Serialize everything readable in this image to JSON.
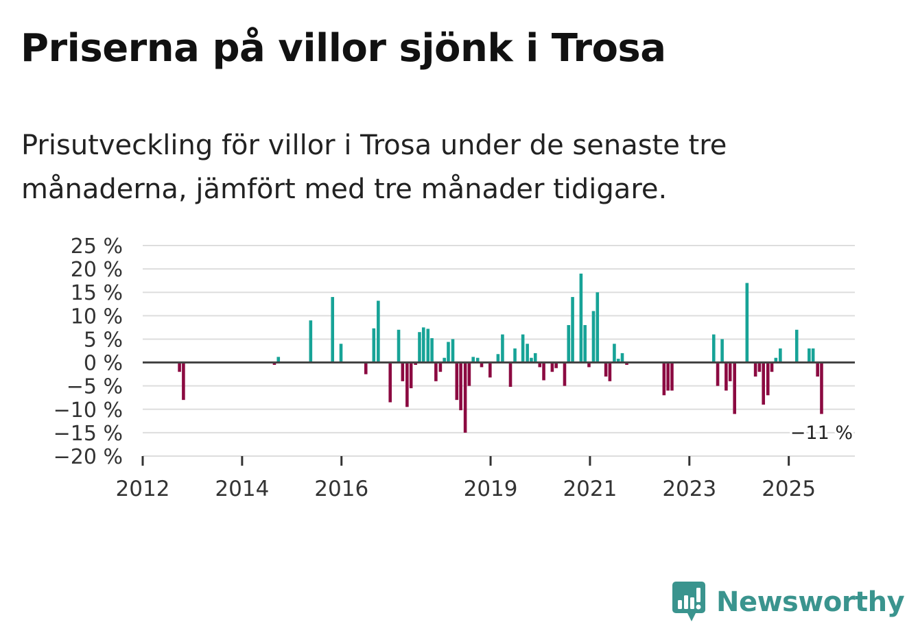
{
  "title": "Priserna på villor sjönk i Trosa",
  "subtitle": "Prisutveckling för villor i Trosa under de senaste tre månaderna, jämfört med tre månader tidigare.",
  "brand": {
    "name": "Newsworthy"
  },
  "colors": {
    "positive": "#17a397",
    "negative": "#8b0a41",
    "grid": "#dddddd",
    "zero": "#444444",
    "brand": "#3a948e"
  },
  "chart_data": {
    "type": "bar",
    "ylim": [
      -20,
      25
    ],
    "yticks": [
      25,
      20,
      15,
      10,
      5,
      0,
      -5,
      -10,
      -15,
      -20
    ],
    "ytick_labels": [
      "25 %",
      "20 %",
      "15 %",
      "10 %",
      "5 %",
      "0 %",
      "−5 %",
      "−10 %",
      "−15 %",
      "−20 %"
    ],
    "xlim": [
      2012.0,
      2026.33
    ],
    "xticks": [
      2012,
      2014,
      2016,
      2019,
      2021,
      2023,
      2025
    ],
    "xtick_labels": [
      "2012",
      "2014",
      "2016",
      "2019",
      "2021",
      "2023",
      "2025"
    ],
    "last_value_label": "−11 %",
    "series": [
      {
        "name": "Prisutveckling",
        "x": [
          2012.74,
          2012.82,
          2014.65,
          2014.73,
          2015.38,
          2015.82,
          2015.99,
          2016.49,
          2016.65,
          2016.74,
          2016.98,
          2017.15,
          2017.23,
          2017.32,
          2017.4,
          2017.49,
          2017.57,
          2017.65,
          2017.74,
          2017.82,
          2017.9,
          2017.99,
          2018.07,
          2018.15,
          2018.24,
          2018.32,
          2018.4,
          2018.49,
          2018.57,
          2018.65,
          2018.74,
          2018.82,
          2018.99,
          2019.15,
          2019.24,
          2019.4,
          2019.49,
          2019.65,
          2019.74,
          2019.82,
          2019.9,
          2019.99,
          2020.07,
          2020.24,
          2020.32,
          2020.49,
          2020.57,
          2020.65,
          2020.82,
          2020.9,
          2020.98,
          2021.07,
          2021.15,
          2021.32,
          2021.4,
          2021.49,
          2021.57,
          2021.65,
          2021.74,
          2021.82,
          2021.9,
          2022.49,
          2022.57,
          2022.65,
          2023.49,
          2023.57,
          2023.66,
          2023.74,
          2023.82,
          2023.91,
          2024.16,
          2024.33,
          2024.41,
          2024.49,
          2024.58,
          2024.66,
          2024.74,
          2024.83,
          2025.16,
          2025.41,
          2025.49,
          2025.58,
          2025.66
        ],
        "values": [
          -2,
          -8,
          -0.5,
          1.2,
          9,
          14,
          4,
          -2.5,
          7.3,
          13.2,
          -8.5,
          7,
          -4,
          -9.5,
          -5.5,
          -0.5,
          6.5,
          7.5,
          7.2,
          5.2,
          -4,
          -2,
          1,
          4.4,
          5,
          -8,
          -10.2,
          -15,
          -5,
          1.2,
          1,
          -1,
          -3.2,
          1.8,
          6,
          -5.2,
          3,
          6,
          4,
          1,
          2,
          -1,
          -3.8,
          -2,
          -1.2,
          -5,
          8,
          14,
          19,
          8,
          -1,
          11,
          15,
          -3,
          -4,
          4,
          0.8,
          2,
          -0.5,
          0,
          0,
          -7,
          -6,
          -6,
          6,
          -5,
          5,
          -6,
          -4,
          -11,
          17,
          -3,
          -2,
          -9,
          -7,
          -2,
          1,
          3,
          7,
          3,
          3,
          -3,
          -11
        ]
      }
    ]
  }
}
